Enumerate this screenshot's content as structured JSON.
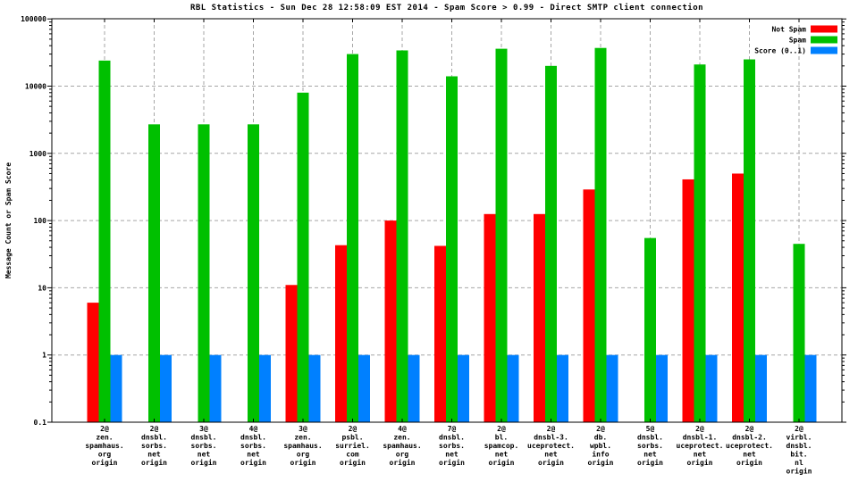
{
  "title": "RBL Statistics - Sun Dec 28 12:58:09 EST 2014 - Spam Score > 0.99 - Direct SMTP client connection",
  "colors": {
    "not_spam": "#ff0000",
    "spam": "#00c000",
    "score": "#0080ff",
    "grid": "#a6a6a6",
    "frame": "#000000"
  },
  "chart_data": {
    "type": "bar",
    "title": "RBL Statistics - Sun Dec 28 12:58:09 EST 2014 - Spam Score > 0.99 - Direct SMTP client connection",
    "xlabel": "",
    "ylabel": "Message Count or Spam Score",
    "y_scale": "log",
    "ylim": [
      0.1,
      100000
    ],
    "y_ticks": [
      "100000",
      "10000",
      "1000",
      "100",
      "10",
      "1",
      "0.1"
    ],
    "grid": true,
    "legend_position": "top-right-inside",
    "legend": [
      {
        "label": "Not Spam",
        "color_key": "not_spam"
      },
      {
        "label": "Spam",
        "color_key": "spam"
      },
      {
        "label": "Score (0..1)",
        "color_key": "score"
      }
    ],
    "categories": [
      [
        "2@",
        "zen.",
        "spamhaus.",
        "org",
        "origin"
      ],
      [
        "2@",
        "dnsbl.",
        "sorbs.",
        "net",
        "origin"
      ],
      [
        "3@",
        "dnsbl.",
        "sorbs.",
        "net",
        "origin"
      ],
      [
        "4@",
        "dnsbl.",
        "sorbs.",
        "net",
        "origin"
      ],
      [
        "3@",
        "zen.",
        "spamhaus.",
        "org",
        "origin"
      ],
      [
        "2@",
        "psbl.",
        "surriel.",
        "com",
        "origin"
      ],
      [
        "4@",
        "zen.",
        "spamhaus.",
        "org",
        "origin"
      ],
      [
        "7@",
        "dnsbl.",
        "sorbs.",
        "net",
        "origin"
      ],
      [
        "2@",
        "bl.",
        "spamcop.",
        "net",
        "origin"
      ],
      [
        "2@",
        "dnsbl-3.",
        "uceprotect.",
        "net",
        "origin"
      ],
      [
        "2@",
        "db.",
        "wpbl.",
        "info",
        "origin"
      ],
      [
        "5@",
        "dnsbl.",
        "sorbs.",
        "net",
        "origin"
      ],
      [
        "2@",
        "dnsbl-1.",
        "uceprotect.",
        "net",
        "origin"
      ],
      [
        "2@",
        "dnsbl-2.",
        "uceprotect.",
        "net",
        "origin"
      ],
      [
        "2@",
        "virbl.",
        "dnsbl.",
        "bit.",
        "nl",
        "origin"
      ]
    ],
    "series": [
      {
        "name": "Not Spam",
        "color_key": "not_spam",
        "values": [
          6,
          0,
          0,
          0,
          11,
          43,
          100,
          42,
          125,
          125,
          290,
          0,
          410,
          500,
          0
        ]
      },
      {
        "name": "Spam",
        "color_key": "spam",
        "values": [
          24000,
          2700,
          2700,
          2700,
          8000,
          30000,
          34000,
          14000,
          36000,
          20000,
          37000,
          55,
          21000,
          25000,
          45
        ]
      },
      {
        "name": "Score (0..1)",
        "color_key": "score",
        "values": [
          1,
          1,
          1,
          1,
          1,
          1,
          1,
          1,
          1,
          1,
          1,
          1,
          1,
          1,
          1
        ]
      }
    ]
  }
}
